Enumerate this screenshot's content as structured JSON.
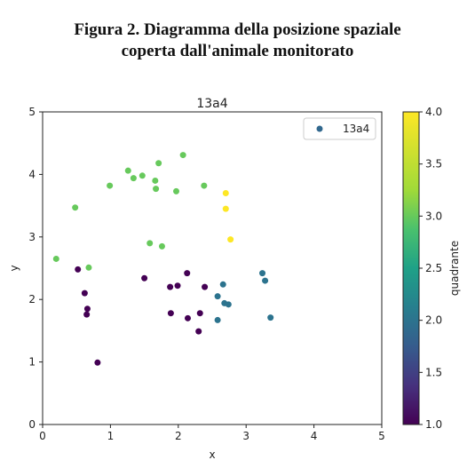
{
  "caption": {
    "line1": "Figura 2. Diagramma della posizione spaziale",
    "line2": "coperta dall'animale monitorato"
  },
  "chart_data": {
    "type": "scatter",
    "title": "13a4",
    "xlabel": "x",
    "ylabel": "y",
    "xlim": [
      0,
      5
    ],
    "ylim": [
      0,
      5
    ],
    "x_ticks": [
      "0",
      "1",
      "2",
      "3",
      "4",
      "5"
    ],
    "y_ticks": [
      "0",
      "1",
      "2",
      "3",
      "4",
      "5"
    ],
    "legend": {
      "label": "13a4",
      "placement": "top-right",
      "marker_color": "#31688e"
    },
    "colorbar": {
      "label": "quadrante",
      "range": [
        1.0,
        4.0
      ],
      "ticks": [
        "1.0",
        "1.5",
        "2.0",
        "2.5",
        "3.0",
        "3.5",
        "4.0"
      ],
      "colormap": "viridis"
    },
    "grid": false,
    "points": [
      {
        "x": 0.52,
        "y": 2.48,
        "c": 1
      },
      {
        "x": 0.62,
        "y": 2.1,
        "c": 1
      },
      {
        "x": 0.66,
        "y": 1.85,
        "c": 1
      },
      {
        "x": 0.65,
        "y": 1.76,
        "c": 1
      },
      {
        "x": 0.81,
        "y": 0.99,
        "c": 1
      },
      {
        "x": 1.5,
        "y": 2.34,
        "c": 1
      },
      {
        "x": 1.88,
        "y": 2.2,
        "c": 1
      },
      {
        "x": 1.99,
        "y": 2.22,
        "c": 1
      },
      {
        "x": 2.13,
        "y": 2.42,
        "c": 1
      },
      {
        "x": 2.39,
        "y": 2.2,
        "c": 1
      },
      {
        "x": 1.89,
        "y": 1.78,
        "c": 1
      },
      {
        "x": 2.14,
        "y": 1.7,
        "c": 1
      },
      {
        "x": 2.32,
        "y": 1.78,
        "c": 1
      },
      {
        "x": 2.3,
        "y": 1.49,
        "c": 1
      },
      {
        "x": 2.58,
        "y": 2.05,
        "c": 2
      },
      {
        "x": 2.66,
        "y": 2.24,
        "c": 2
      },
      {
        "x": 2.68,
        "y": 1.94,
        "c": 2
      },
      {
        "x": 2.74,
        "y": 1.92,
        "c": 2
      },
      {
        "x": 2.58,
        "y": 1.67,
        "c": 2
      },
      {
        "x": 3.24,
        "y": 2.42,
        "c": 2
      },
      {
        "x": 3.28,
        "y": 2.3,
        "c": 2
      },
      {
        "x": 3.36,
        "y": 1.71,
        "c": 2
      },
      {
        "x": 0.2,
        "y": 2.65,
        "c": 3
      },
      {
        "x": 0.68,
        "y": 2.51,
        "c": 3
      },
      {
        "x": 0.48,
        "y": 3.47,
        "c": 3
      },
      {
        "x": 0.99,
        "y": 3.82,
        "c": 3
      },
      {
        "x": 1.26,
        "y": 4.06,
        "c": 3
      },
      {
        "x": 1.34,
        "y": 3.94,
        "c": 3
      },
      {
        "x": 1.47,
        "y": 3.98,
        "c": 3
      },
      {
        "x": 1.66,
        "y": 3.9,
        "c": 3
      },
      {
        "x": 1.67,
        "y": 3.77,
        "c": 3
      },
      {
        "x": 1.71,
        "y": 4.18,
        "c": 3
      },
      {
        "x": 1.97,
        "y": 3.73,
        "c": 3
      },
      {
        "x": 2.07,
        "y": 4.31,
        "c": 3
      },
      {
        "x": 2.38,
        "y": 3.82,
        "c": 3
      },
      {
        "x": 1.58,
        "y": 2.9,
        "c": 3
      },
      {
        "x": 1.76,
        "y": 2.85,
        "c": 3
      },
      {
        "x": 2.7,
        "y": 3.7,
        "c": 4
      },
      {
        "x": 2.7,
        "y": 3.45,
        "c": 4
      },
      {
        "x": 2.77,
        "y": 2.96,
        "c": 4
      }
    ]
  }
}
